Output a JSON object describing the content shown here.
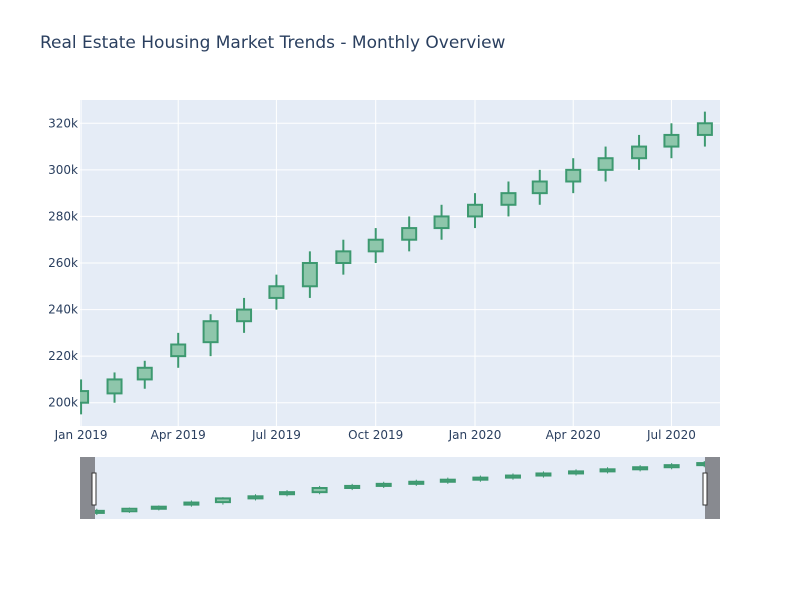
{
  "chart_data": {
    "type": "candlestick",
    "title": "Real Estate Housing Market Trends - Monthly Overview",
    "colors": {
      "increasing": "#3d9970",
      "increasing_fill": "#8ec6ab",
      "plot_bg": "#e5ecf6",
      "grid": "#ffffff",
      "text": "#2a3f5f",
      "rangeslider_mask": "#888a90"
    },
    "x_tick_labels": [
      "Jan 2019",
      "Apr 2019",
      "Jul 2019",
      "Oct 2019",
      "Jan 2020",
      "Apr 2020",
      "Jul 2020"
    ],
    "y_tick_labels": [
      "200k",
      "220k",
      "240k",
      "260k",
      "280k",
      "300k",
      "320k"
    ],
    "y_ticks": [
      200000,
      220000,
      240000,
      260000,
      280000,
      300000,
      320000
    ],
    "ylim": [
      190000,
      330000
    ],
    "xlim": [
      "2018-12-31",
      "2020-08-15"
    ],
    "grid": true,
    "rangeslider": true,
    "x": [
      "2019-01-01",
      "2019-02-01",
      "2019-03-01",
      "2019-04-01",
      "2019-05-01",
      "2019-06-01",
      "2019-07-01",
      "2019-08-01",
      "2019-09-01",
      "2019-10-01",
      "2019-11-01",
      "2019-12-01",
      "2020-01-01",
      "2020-02-01",
      "2020-03-01",
      "2020-04-01",
      "2020-05-01",
      "2020-06-01",
      "2020-07-01",
      "2020-08-01"
    ],
    "open": [
      200000,
      204000,
      210000,
      220000,
      226000,
      235000,
      245000,
      250000,
      260000,
      265000,
      270000,
      275000,
      280000,
      285000,
      290000,
      295000,
      300000,
      305000,
      310000,
      315000
    ],
    "high": [
      210000,
      213000,
      218000,
      230000,
      238000,
      245000,
      255000,
      265000,
      270000,
      275000,
      280000,
      285000,
      290000,
      295000,
      300000,
      305000,
      310000,
      315000,
      320000,
      325000
    ],
    "low": [
      195000,
      200000,
      206000,
      215000,
      220000,
      230000,
      240000,
      245000,
      255000,
      260000,
      265000,
      270000,
      275000,
      280000,
      285000,
      290000,
      295000,
      300000,
      305000,
      310000
    ],
    "close": [
      205000,
      210000,
      215000,
      225000,
      235000,
      240000,
      250000,
      260000,
      265000,
      270000,
      275000,
      280000,
      285000,
      290000,
      295000,
      300000,
      305000,
      310000,
      315000,
      320000
    ]
  }
}
